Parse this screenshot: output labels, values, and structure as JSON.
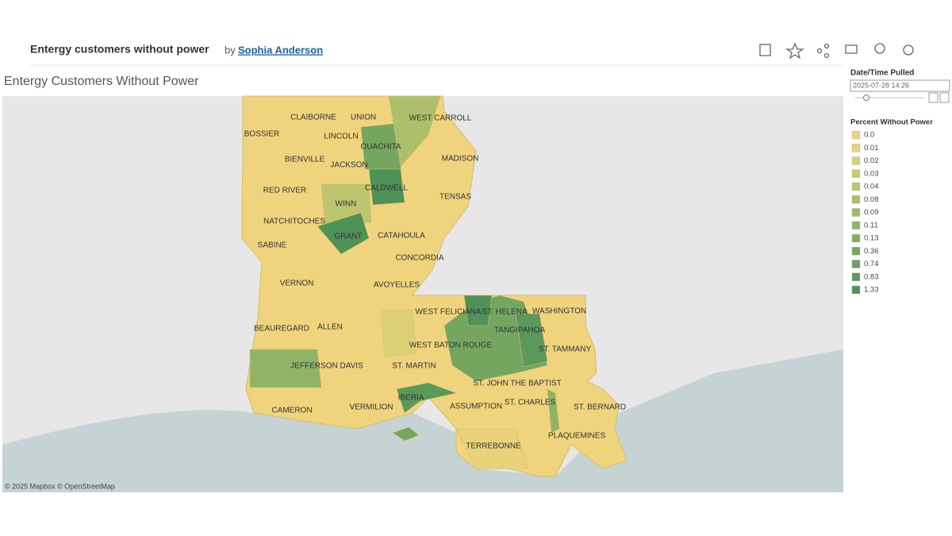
{
  "header": {
    "title": "Entergy customers without power",
    "by": "by",
    "author": "Sophia Anderson"
  },
  "viz_title": "Entergy Customers Without Power",
  "filter": {
    "label": "Date/Time Pulled",
    "value": "2025-07-28 14:26"
  },
  "legend": {
    "title": "Percent Without Power",
    "items": [
      {
        "label": "0.0",
        "color": "#f0d47d"
      },
      {
        "label": "0.01",
        "color": "#e9d27a"
      },
      {
        "label": "0.02",
        "color": "#dcd076"
      },
      {
        "label": "0.03",
        "color": "#cccb73"
      },
      {
        "label": "0.04",
        "color": "#bdc56f"
      },
      {
        "label": "0.08",
        "color": "#aebf6c"
      },
      {
        "label": "0.09",
        "color": "#9fba69"
      },
      {
        "label": "0.11",
        "color": "#90b466"
      },
      {
        "label": "0.13",
        "color": "#82ad63"
      },
      {
        "label": "0.36",
        "color": "#74a660"
      },
      {
        "label": "0.74",
        "color": "#67a05d"
      },
      {
        "label": "0.83",
        "color": "#5a995a"
      },
      {
        "label": "1.33",
        "color": "#4e9257"
      }
    ]
  },
  "map": {
    "parishes": [
      "BOSSIER",
      "CLAIBORNE",
      "UNION",
      "WEST CARROLL",
      "LINCOLN",
      "OUACHITA",
      "MADISON",
      "BIENVILLE",
      "JACKSON",
      "CALDWELL",
      "RED RIVER",
      "WINN",
      "TENSAS",
      "NATCHITOCHES",
      "GRANT",
      "CATAHOULA",
      "SABINE",
      "CONCORDIA",
      "VERNON",
      "AVOYELLES",
      "WEST FELICIANA",
      "ST. HELENA",
      "WASHINGTON",
      "BEAUREGARD",
      "ALLEN",
      "TANGIPAHOA",
      "WEST BATON ROUGE",
      "ST. TAMMANY",
      "JEFFERSON DAVIS",
      "ST. MARTIN",
      "ST. JOHN THE BAPTIST",
      "IBERIA",
      "CAMERON",
      "VERMILION",
      "ASSUMPTION",
      "ST. CHARLES",
      "ST. BERNARD",
      "PLAQUEMINES",
      "TERREBONNE"
    ],
    "attribution": "© 2025 Mapbox  © OpenStreetMap"
  }
}
